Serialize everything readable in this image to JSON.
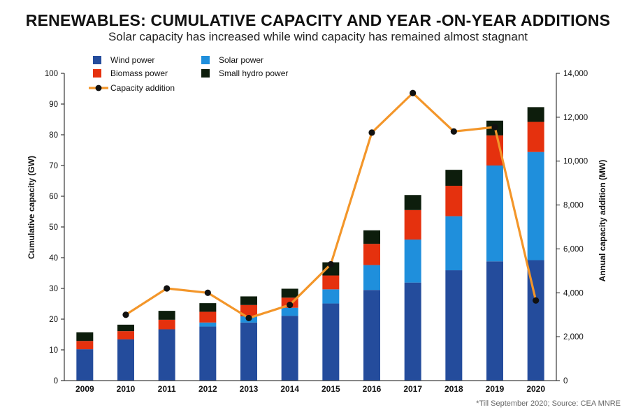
{
  "chart_data": {
    "type": "bar",
    "stacked": true,
    "title": "RENEWABLES: CUMULATIVE CAPACITY AND YEAR -ON-YEAR ADDITIONS",
    "subtitle": "Solar capacity has increased while wind capacity has remained almost stagnant",
    "footnote": "*Till September 2020; Source: CEA MNRE",
    "categories": [
      "2009",
      "2010",
      "2011",
      "2012",
      "2013",
      "2014",
      "2015",
      "2016",
      "2017",
      "2018",
      "2019",
      "2020"
    ],
    "y_left": {
      "label": "Cumulative capacity (GW)",
      "range": [
        0,
        100
      ],
      "ticks": [
        "0",
        "10",
        "20",
        "30",
        "40",
        "50",
        "60",
        "70",
        "80",
        "90",
        "100"
      ]
    },
    "y_right": {
      "label": "Annual capacity addition (MW)",
      "range": [
        0,
        14000
      ],
      "ticks": [
        "0",
        "2,000",
        "4,000",
        "6,000",
        "8,000",
        "10,000",
        "12,000",
        "14,000"
      ]
    },
    "series": [
      {
        "name": "Wind power",
        "color": "#244c9c",
        "values": [
          10.2,
          13.4,
          16.7,
          17.6,
          18.9,
          21.1,
          25.1,
          29.5,
          31.9,
          35.9,
          38.8,
          39.2
        ]
      },
      {
        "name": "Solar power",
        "color": "#1f8fdc",
        "values": [
          0.0,
          0.0,
          0.0,
          1.3,
          2.0,
          2.6,
          4.6,
          8.1,
          14.0,
          17.6,
          31.2,
          35.2
        ]
      },
      {
        "name": "Biomass power",
        "color": "#e5310e",
        "values": [
          2.7,
          2.7,
          3.1,
          3.5,
          3.7,
          3.3,
          4.5,
          6.9,
          9.6,
          9.9,
          9.8,
          9.8
        ]
      },
      {
        "name": "Small hydro power",
        "color": "#0d1d0c",
        "values": [
          2.8,
          2.1,
          2.9,
          2.8,
          2.8,
          2.9,
          4.3,
          4.4,
          4.9,
          5.2,
          4.8,
          4.8
        ]
      }
    ],
    "line_series": {
      "name": "Capacity addition",
      "axis": "right",
      "color": "#f3962a",
      "points": [
        {
          "x": "2010",
          "y": 3000
        },
        {
          "x": "2011",
          "y": 4200
        },
        {
          "x": "2012",
          "y": 4000
        },
        {
          "x": "2013",
          "y": 2850
        },
        {
          "x": "2014",
          "y": 3450
        },
        {
          "x": "2015",
          "y": 5300
        },
        {
          "x": "2016",
          "y": 11300
        },
        {
          "x": "2017",
          "y": 13100
        },
        {
          "x": "2018",
          "y": 11350
        },
        {
          "x": "2019",
          "y": 11550
        },
        {
          "x": "2020",
          "y": 3650
        }
      ]
    },
    "legend": {
      "placement": "top-left",
      "items": [
        {
          "label": "Wind power",
          "kind": "box",
          "color": "#244c9c"
        },
        {
          "label": "Solar power",
          "kind": "box",
          "color": "#1f8fdc"
        },
        {
          "label": "Biomass power",
          "kind": "box",
          "color": "#e5310e"
        },
        {
          "label": "Small hydro power",
          "kind": "box",
          "color": "#0d1d0c"
        },
        {
          "label": "Capacity addition",
          "kind": "line",
          "color": "#f3962a"
        }
      ]
    },
    "grid": false
  }
}
